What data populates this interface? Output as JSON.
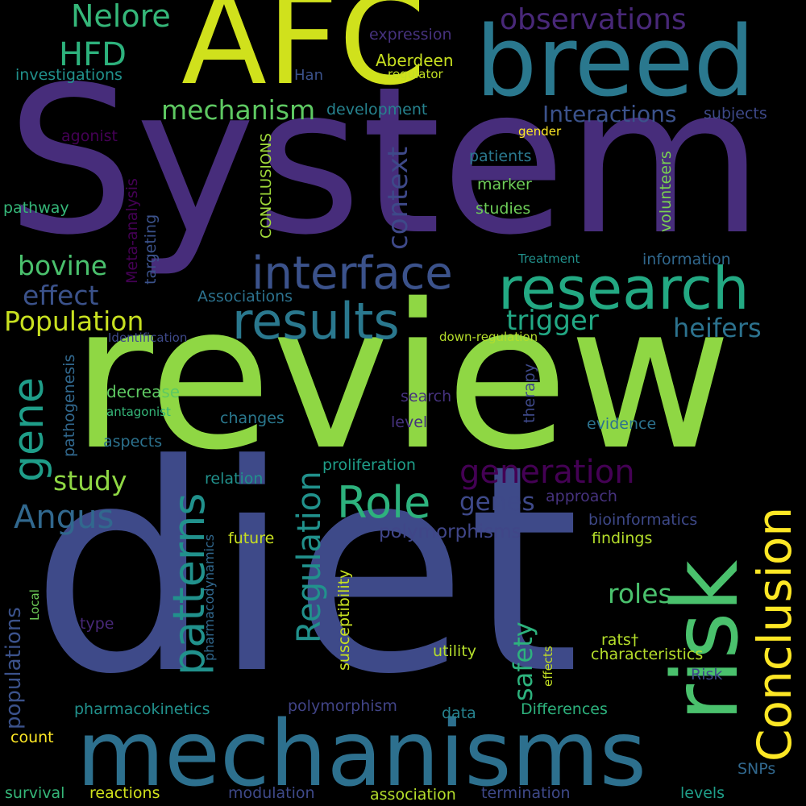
{
  "colors": {
    "background": "#000000",
    "palette": [
      "#440154",
      "#482878",
      "#3e4989",
      "#31688e",
      "#26828e",
      "#1f9e89",
      "#35b779",
      "#6ece58",
      "#b5de2b",
      "#fde725"
    ]
  },
  "words": [
    {
      "text": "System",
      "color": "#472d7b"
    },
    {
      "text": "review",
      "color": "#8fd744"
    },
    {
      "text": "diet",
      "color": "#3e4a89"
    },
    {
      "text": "AFC",
      "color": "#d0e11c"
    },
    {
      "text": "breed",
      "color": "#2a788e"
    },
    {
      "text": "mechanisms",
      "color": "#2d708e"
    },
    {
      "text": "risk",
      "color": "#4ac16d"
    },
    {
      "text": "research",
      "color": "#23a983"
    },
    {
      "text": "results",
      "color": "#2a788e"
    },
    {
      "text": "interface",
      "color": "#3b528b"
    },
    {
      "text": "Conclusion",
      "color": "#fde725"
    },
    {
      "text": "patterns",
      "color": "#21918c"
    },
    {
      "text": "Role",
      "color": "#2db27d"
    },
    {
      "text": "Regulation",
      "color": "#21918c"
    },
    {
      "text": "generation",
      "color": "#440154"
    },
    {
      "text": "gene",
      "color": "#1f9e89"
    },
    {
      "text": "Nelore",
      "color": "#35b779"
    },
    {
      "text": "HFD",
      "color": "#2db27d"
    },
    {
      "text": "observations",
      "color": "#482878"
    },
    {
      "text": "mechanism",
      "color": "#5ec962"
    },
    {
      "text": "Interactions",
      "color": "#3b528b"
    },
    {
      "text": "context",
      "color": "#3e4989"
    },
    {
      "text": "bovine",
      "color": "#4ac16d"
    },
    {
      "text": "effect",
      "color": "#3b528b"
    },
    {
      "text": "Population",
      "color": "#c8e020"
    },
    {
      "text": "trigger",
      "color": "#22a884"
    },
    {
      "text": "heifers",
      "color": "#2c728e"
    },
    {
      "text": "Angus",
      "color": "#31688e"
    },
    {
      "text": "study",
      "color": "#8fd744"
    },
    {
      "text": "genes",
      "color": "#3e4989"
    },
    {
      "text": "polymorphisms",
      "color": "#404688"
    },
    {
      "text": "roles",
      "color": "#4ac16d"
    },
    {
      "text": "safety",
      "color": "#2db27d"
    },
    {
      "text": "populations",
      "color": "#3b528b"
    },
    {
      "text": "expression",
      "color": "#46327e"
    },
    {
      "text": "Aberdeen",
      "color": "#c8e020"
    },
    {
      "text": "investigations",
      "color": "#21918c"
    },
    {
      "text": "Han",
      "color": "#3b528b"
    },
    {
      "text": "regulator",
      "color": "#c2df23"
    },
    {
      "text": "development",
      "color": "#26828e"
    },
    {
      "text": "subjects",
      "color": "#3e4989"
    },
    {
      "text": "agonist",
      "color": "#440154"
    },
    {
      "text": "gender",
      "color": "#fde725"
    },
    {
      "text": "patients",
      "color": "#2a788e"
    },
    {
      "text": "volunteers",
      "color": "#7ad151"
    },
    {
      "text": "CONCLUSIONS",
      "color": "#a0da39"
    },
    {
      "text": "Meta-analysis",
      "color": "#440154"
    },
    {
      "text": "marker",
      "color": "#6ece58"
    },
    {
      "text": "studies",
      "color": "#6ece58"
    },
    {
      "text": "pathway",
      "color": "#35b779"
    },
    {
      "text": "targeting",
      "color": "#3b528b"
    },
    {
      "text": "Treatment",
      "color": "#21918c"
    },
    {
      "text": "information",
      "color": "#31688e"
    },
    {
      "text": "Associations",
      "color": "#2c728e"
    },
    {
      "text": "Identification",
      "color": "#3e4989"
    },
    {
      "text": "down-regulation",
      "color": "#b5de2b"
    },
    {
      "text": "pathogenesis",
      "color": "#31688e"
    },
    {
      "text": "decrease",
      "color": "#5ec962"
    },
    {
      "text": "search",
      "color": "#46327e"
    },
    {
      "text": "antagonist",
      "color": "#35b779"
    },
    {
      "text": "changes",
      "color": "#2a788e"
    },
    {
      "text": "level",
      "color": "#46327e"
    },
    {
      "text": "therapy",
      "color": "#3e4989"
    },
    {
      "text": "evidence",
      "color": "#2c728e"
    },
    {
      "text": "aspects",
      "color": "#2c728e"
    },
    {
      "text": "proliferation",
      "color": "#1f9e89"
    },
    {
      "text": "relation",
      "color": "#21918c"
    },
    {
      "text": "approach",
      "color": "#46327e"
    },
    {
      "text": "pharmacodynamics",
      "color": "#31688e"
    },
    {
      "text": "bioinformatics",
      "color": "#3e4989"
    },
    {
      "text": "future",
      "color": "#c8e020"
    },
    {
      "text": "susceptibility",
      "color": "#c8e020"
    },
    {
      "text": "findings",
      "color": "#b5de2b"
    },
    {
      "text": "Local",
      "color": "#6ece58"
    },
    {
      "text": "type",
      "color": "#482878"
    },
    {
      "text": "utility",
      "color": "#b5de2b"
    },
    {
      "text": "rats†",
      "color": "#b5de2b"
    },
    {
      "text": "effects",
      "color": "#c2df23"
    },
    {
      "text": "characteristics",
      "color": "#b5de2b"
    },
    {
      "text": "Risk",
      "color": "#3e4989"
    },
    {
      "text": "pharmacokinetics",
      "color": "#21918c"
    },
    {
      "text": "polymorphism",
      "color": "#414487"
    },
    {
      "text": "data",
      "color": "#26828e"
    },
    {
      "text": "Differences",
      "color": "#2db27d"
    },
    {
      "text": "count",
      "color": "#fde725"
    },
    {
      "text": "SNPs",
      "color": "#31688e"
    },
    {
      "text": "survival",
      "color": "#35b779"
    },
    {
      "text": "reactions",
      "color": "#d0e11c"
    },
    {
      "text": "modulation",
      "color": "#3e4989"
    },
    {
      "text": "association",
      "color": "#b5de2b"
    },
    {
      "text": "termination",
      "color": "#3e4989"
    },
    {
      "text": "levels",
      "color": "#1f9e89"
    }
  ]
}
